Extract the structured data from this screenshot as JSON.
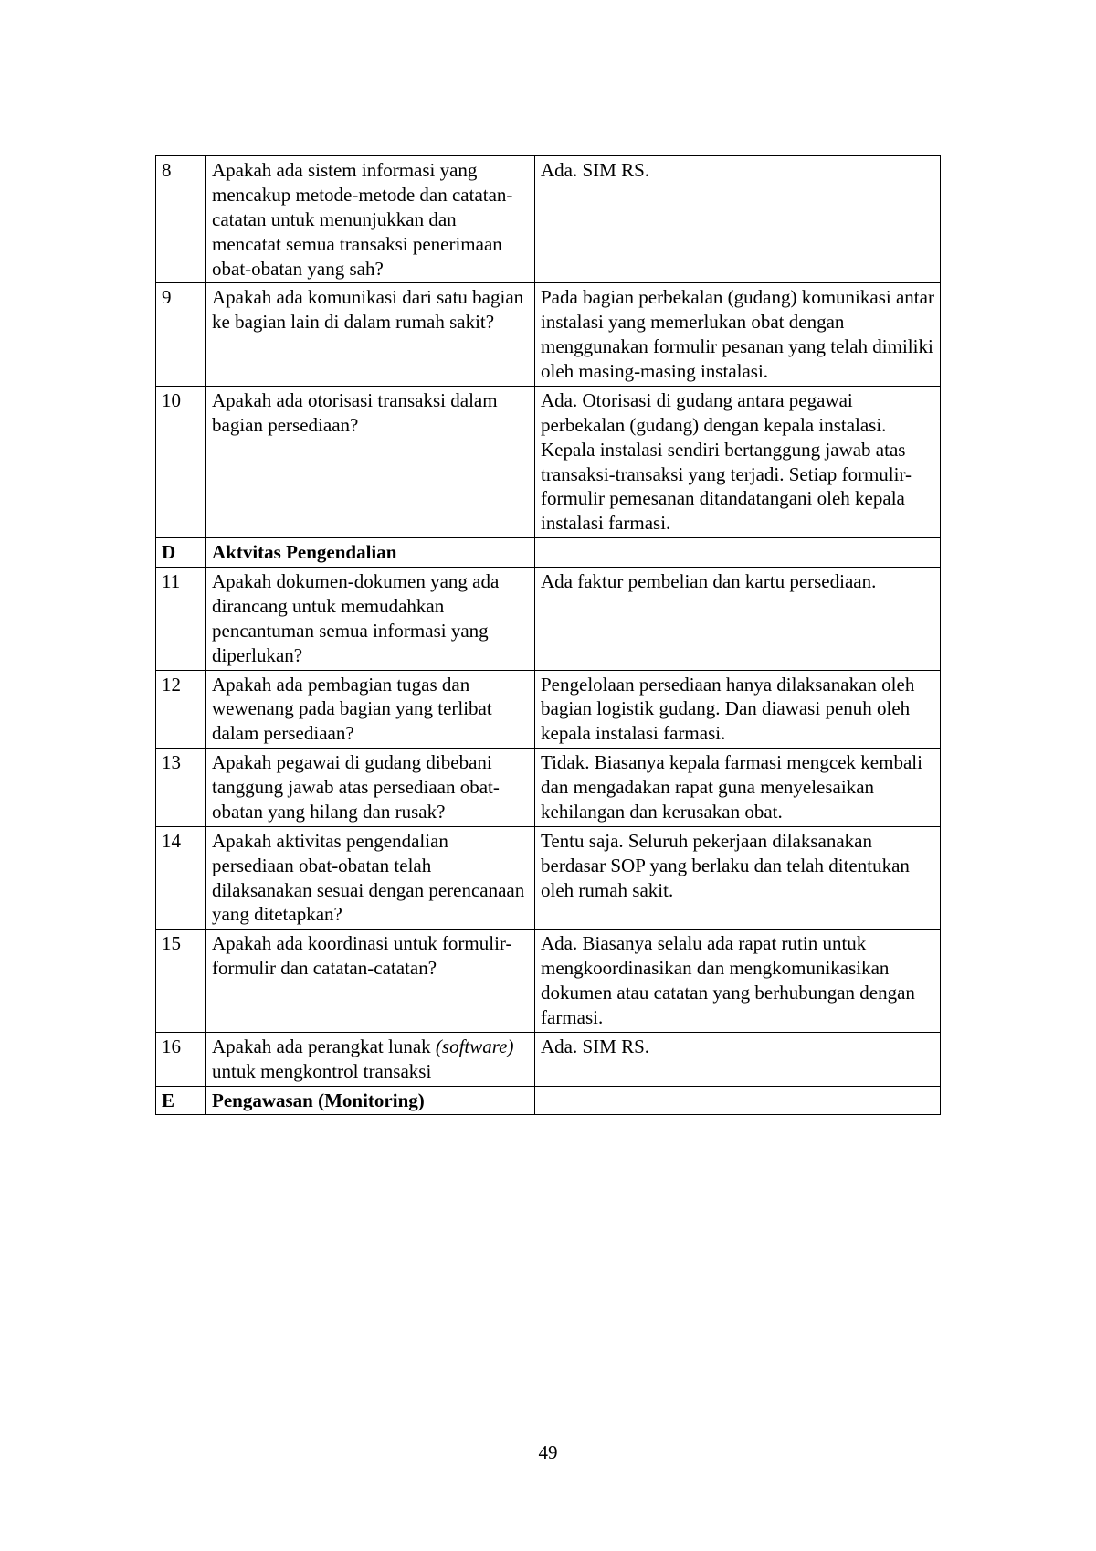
{
  "page_number": "49",
  "table": {
    "border_color": "#000000",
    "font_family": "Times New Roman",
    "font_size_pt": 12,
    "columns": [
      "no",
      "question",
      "answer"
    ],
    "rows": [
      {
        "no": "8",
        "question": "Apakah ada sistem informasi yang mencakup metode-metode dan catatan-catatan untuk menunjukkan dan mencatat semua transaksi penerimaan obat-obatan yang sah?",
        "answer": "Ada. SIM RS."
      },
      {
        "no": "9",
        "question": "Apakah ada komunikasi dari satu bagian ke bagian lain di dalam rumah sakit?",
        "answer": "Pada bagian perbekalan (gudang) komunikasi antar instalasi yang memerlukan obat dengan menggunakan formulir pesanan yang telah dimiliki oleh masing-masing instalasi."
      },
      {
        "no": "10",
        "question": "Apakah ada otorisasi transaksi dalam bagian persediaan?",
        "answer": "Ada. Otorisasi di gudang antara pegawai perbekalan (gudang) dengan kepala instalasi. Kepala instalasi sendiri bertanggung jawab atas transaksi-transaksi yang terjadi. Setiap formulir-formulir pemesanan ditandatangani oleh kepala instalasi farmasi."
      },
      {
        "no": "D",
        "section_title": "Aktvitas Pengendalian",
        "is_section": true
      },
      {
        "no": "11",
        "question": "Apakah dokumen-dokumen yang ada dirancang untuk memudahkan pencantuman semua informasi yang diperlukan?",
        "answer": "Ada faktur pembelian dan kartu persediaan."
      },
      {
        "no": "12",
        "question": "Apakah ada pembagian tugas dan wewenang pada bagian yang terlibat dalam persediaan?",
        "answer": "Pengelolaan persediaan hanya dilaksanakan oleh bagian logistik gudang. Dan diawasi penuh oleh kepala instalasi farmasi."
      },
      {
        "no": "13",
        "question": "Apakah pegawai di gudang dibebani tanggung jawab atas persediaan obat-obatan yang hilang dan rusak?",
        "answer": "Tidak. Biasanya kepala farmasi mengcek kembali dan mengadakan rapat guna menyelesaikan kehilangan dan kerusakan obat."
      },
      {
        "no": "14",
        "question": "Apakah aktivitas pengendalian persediaan obat-obatan telah dilaksanakan sesuai dengan perencanaan yang ditetapkan?",
        "answer": "Tentu saja. Seluruh pekerjaan dilaksanakan berdasar SOP yang berlaku dan telah ditentukan oleh rumah sakit."
      },
      {
        "no": "15",
        "question": "Apakah ada koordinasi untuk formulir-formulir dan catatan-catatan?",
        "answer": "Ada. Biasanya selalu ada rapat rutin untuk mengkoordinasikan dan mengkomunikasikan dokumen atau catatan yang berhubungan dengan farmasi."
      },
      {
        "no": "16",
        "question_pre": "Apakah ada perangkat lunak ",
        "question_italic": "(software)",
        "question_post": " untuk mengkontrol transaksi",
        "answer": "Ada. SIM RS.",
        "has_italic": true
      },
      {
        "no": "E",
        "section_title": "Pengawasan (Monitoring)",
        "is_section": true
      }
    ]
  }
}
